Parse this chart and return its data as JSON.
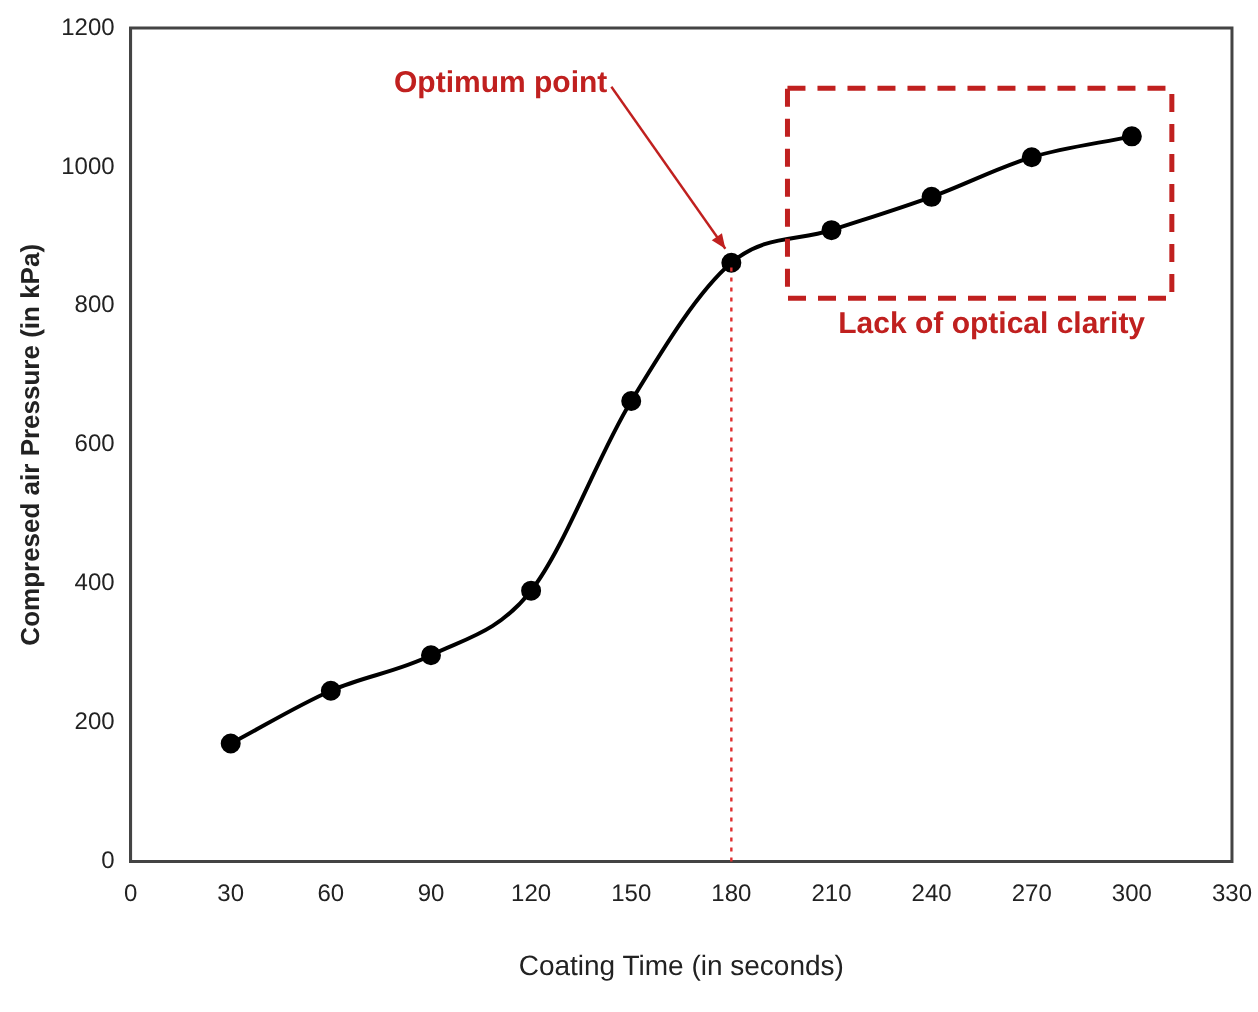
{
  "chart_data": {
    "type": "line",
    "xlabel": "Coating Time (in seconds)",
    "ylabel": "Compresed air Pressure (in kPa)",
    "x": [
      30,
      60,
      90,
      120,
      150,
      180,
      210,
      240,
      270,
      300
    ],
    "series": [
      {
        "color": "#000000",
        "values": [
          170,
          246,
          297,
          390,
          663,
          862,
          909,
          957,
          1014,
          1044
        ]
      }
    ],
    "xlim": [
      0,
      330
    ],
    "xticks": [
      0,
      30,
      60,
      90,
      120,
      150,
      180,
      210,
      240,
      270,
      300,
      330
    ],
    "ylim": [
      0,
      1200
    ],
    "yticks": [
      0,
      200,
      400,
      600,
      800,
      1000,
      1200
    ],
    "grid": false,
    "legend": false,
    "marker": "circle",
    "line_style": "solid",
    "ref_lines": [
      {
        "axis": "x",
        "value": 180,
        "color": "#e03030",
        "line_style": "dotted"
      }
    ],
    "annotations": [
      {
        "text": "Optimum point",
        "x": 180,
        "y": 862
      },
      "Lack of optical clarity"
    ]
  }
}
